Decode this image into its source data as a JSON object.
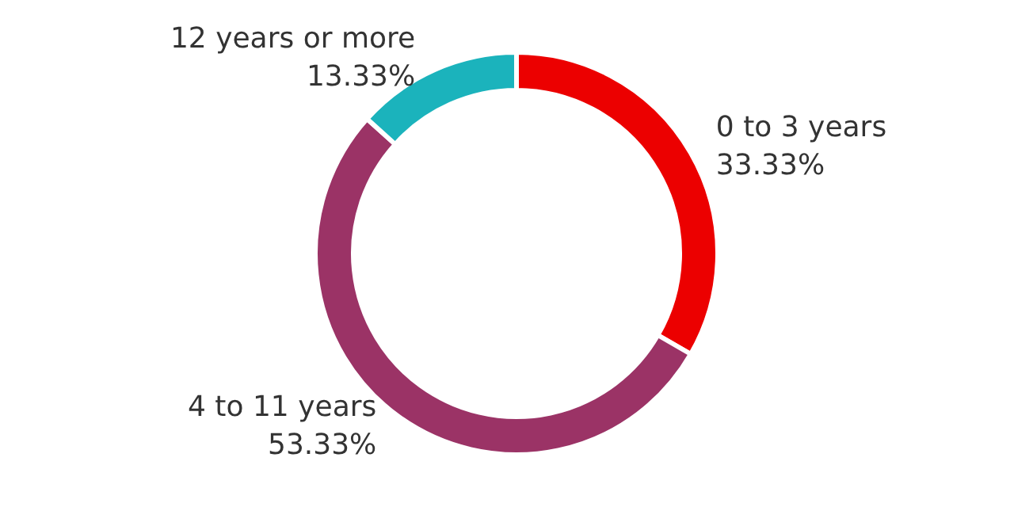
{
  "chart_data": {
    "type": "donut",
    "categories": [
      "0 to 3 years",
      "4 to 11 years",
      "12 years or more"
    ],
    "values": [
      33.33,
      53.33,
      13.33
    ],
    "colors": [
      "#ec0000",
      "#9b3366",
      "#1bb3bc"
    ],
    "value_labels": [
      "33.33%",
      "53.33%",
      "13.33%"
    ],
    "legend": false
  }
}
